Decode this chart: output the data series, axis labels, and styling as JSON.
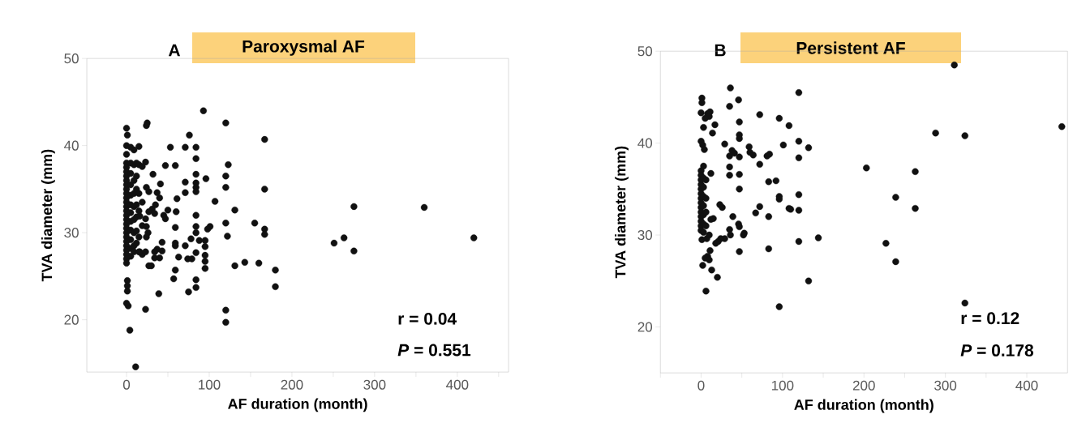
{
  "chart_data": [
    {
      "type": "scatter",
      "subtitle": "A",
      "title": "Paroxysmal AF",
      "xlabel": "AF duration (month)",
      "ylabel": "TVA diameter (mm)",
      "color": "#111111",
      "marker": "circle",
      "grid": false,
      "xlim": [
        -48,
        462
      ],
      "ylim": [
        14,
        50
      ],
      "xticks": [
        0,
        {
          "value": 50,
          "label": null
        },
        100,
        {
          "value": 150,
          "label": null
        },
        200,
        {
          "value": 250,
          "label": null
        },
        300,
        {
          "value": 350,
          "label": null
        },
        400,
        {
          "value": 450,
          "label": null
        }
      ],
      "yticks": [
        20,
        30,
        40,
        50
      ],
      "annotations": [
        "r = 0.04",
        "*P* = 0.551"
      ],
      "x": [
        0,
        0,
        0,
        0,
        0,
        0,
        0,
        0,
        0,
        0,
        0,
        0,
        0,
        0,
        0,
        0,
        0,
        0,
        0,
        0,
        0,
        0,
        0,
        0,
        0,
        0,
        5,
        5,
        5,
        5,
        5,
        5,
        5,
        5,
        5,
        5,
        5,
        5,
        9,
        9,
        9,
        9,
        9,
        9,
        9,
        9,
        9,
        12,
        12,
        12,
        12,
        12,
        12,
        12,
        15,
        15,
        15,
        15,
        15,
        19,
        19,
        19,
        19,
        93,
        120,
        167,
        25,
        24,
        0,
        1,
        76,
        15,
        53,
        71,
        84,
        84,
        47,
        59,
        23,
        123,
        120,
        84,
        96,
        32,
        71,
        84,
        84,
        84,
        120,
        167,
        41,
        71,
        24,
        27,
        37,
        61,
        107,
        131,
        40,
        35,
        31,
        50,
        60,
        45,
        47,
        34,
        27,
        16,
        23,
        84,
        120,
        155,
        59,
        84,
        84,
        101,
        98,
        167,
        167,
        122,
        24,
        26,
        24,
        78,
        88,
        95,
        95,
        43,
        59,
        59,
        71,
        37,
        43,
        34,
        16,
        23,
        84,
        63,
        74,
        79,
        95,
        95,
        95,
        34,
        40,
        131,
        143,
        160,
        180,
        180,
        27,
        30,
        59,
        57,
        84,
        84,
        75,
        39,
        23,
        120,
        120,
        1,
        1,
        1,
        0,
        2,
        4,
        11,
        275,
        360,
        251,
        263,
        275,
        420
      ],
      "values": [
        40,
        39,
        38,
        37.5,
        37,
        36.5,
        36,
        35.5,
        35,
        34.5,
        34,
        33.5,
        33,
        32.5,
        32,
        31.5,
        31,
        30.5,
        30,
        29.5,
        29,
        28.5,
        28,
        27.5,
        27,
        26.5,
        39.8,
        38,
        36.8,
        35.5,
        34.3,
        33.2,
        32.3,
        31.3,
        30.3,
        29.2,
        28.2,
        27.3,
        39.5,
        37.8,
        36,
        34.5,
        33,
        31.5,
        30,
        28.5,
        27.8,
        38,
        36.5,
        35,
        33.2,
        31.8,
        30.2,
        28.8,
        37.8,
        34.5,
        32.5,
        29.5,
        27.8,
        37.6,
        33.5,
        30.8,
        27.5,
        44.0,
        42.6,
        40.7,
        42.6,
        42.3,
        42.0,
        41.2,
        41.2,
        39.9,
        39.8,
        39.8,
        39.8,
        38.5,
        37.7,
        37.7,
        38.1,
        37.8,
        36.5,
        36.7,
        36.2,
        36.7,
        35.8,
        35.7,
        35.2,
        34.7,
        35.2,
        35.0,
        35.6,
        34.6,
        35.2,
        34.7,
        34.6,
        33.9,
        33.6,
        32.6,
        34.0,
        33.2,
        32.7,
        32.6,
        32.4,
        32.0,
        31.6,
        32.2,
        32.4,
        31.9,
        31.6,
        32.0,
        31.1,
        31.1,
        30.6,
        30.7,
        30.0,
        30.7,
        30.4,
        30.4,
        29.8,
        29.6,
        30.7,
        30.0,
        29.5,
        29.3,
        29.1,
        29.1,
        28.4,
        28.9,
        28.8,
        28.5,
        28.5,
        28.1,
        27.9,
        27.8,
        27.8,
        27.8,
        27.7,
        27.2,
        27.0,
        27.0,
        27.4,
        26.7,
        25.9,
        27.1,
        27.1,
        26.2,
        26.6,
        26.5,
        25.7,
        23.8,
        26.2,
        26.2,
        25.7,
        24.7,
        24.6,
        23.7,
        23.2,
        23.0,
        21.2,
        21.1,
        19.7,
        24.5,
        23.9,
        23.3,
        21.9,
        21.6,
        18.8,
        14.6,
        33.0,
        32.9,
        28.8,
        29.4,
        27.9,
        29.4
      ]
    },
    {
      "type": "scatter",
      "subtitle": "B",
      "title": "Persistent AF",
      "xlabel": "AF duration (month)",
      "ylabel": "TVA diameter (mm)",
      "color": "#111111",
      "marker": "circle",
      "grid": false,
      "xlim": [
        -50,
        450
      ],
      "ylim": [
        15,
        50
      ],
      "xticks": [
        {
          "value": -50,
          "label": null
        },
        0,
        {
          "value": 50,
          "label": null
        },
        100,
        {
          "value": 150,
          "label": null
        },
        200,
        {
          "value": 250,
          "label": null
        },
        300,
        {
          "value": 350,
          "label": null
        },
        400
      ],
      "yticks": [
        20,
        30,
        40,
        50
      ],
      "annotations": [
        "r = 0.12",
        "*P* = 0.178"
      ],
      "x": [
        0,
        0,
        0,
        0,
        0,
        0,
        0,
        0,
        0,
        0,
        0,
        0,
        0,
        0,
        3,
        3,
        3,
        3,
        3,
        3,
        3,
        3,
        6,
        6,
        6,
        6,
        36,
        120,
        46,
        1,
        1,
        35,
        0,
        8,
        11,
        10,
        5,
        72,
        96,
        47,
        17,
        14,
        3,
        108,
        47,
        47,
        0,
        2,
        4,
        29,
        101,
        120,
        132,
        38,
        41,
        35,
        47,
        59,
        60,
        64,
        81,
        84,
        120,
        72,
        35,
        35,
        47,
        12,
        83,
        92,
        47,
        96,
        96,
        120,
        23,
        26,
        72,
        67,
        83,
        108,
        110,
        120,
        15,
        12,
        39,
        46,
        47,
        53,
        52,
        35,
        36,
        29,
        24,
        21,
        18,
        1,
        7,
        10,
        120,
        144,
        83,
        47,
        11,
        8,
        5,
        2,
        10,
        13,
        20,
        132,
        6,
        96,
        311,
        443,
        288,
        324,
        203,
        263,
        239,
        263,
        227,
        239,
        324
      ],
      "values": [
        37,
        36.5,
        36,
        35.5,
        35,
        34.5,
        34,
        33.5,
        33,
        32.5,
        32,
        31.5,
        31,
        30.5,
        37.5,
        36.2,
        35.2,
        34.2,
        33.2,
        32.2,
        31.2,
        30.3,
        36,
        34,
        32.5,
        31,
        46.0,
        45.5,
        44.7,
        44.9,
        44.4,
        44.0,
        43.3,
        43.2,
        43.4,
        42.9,
        42.7,
        43.1,
        42.7,
        42.3,
        42.0,
        41.1,
        41.7,
        41.9,
        40.9,
        40.5,
        40.2,
        39.8,
        39.3,
        39.9,
        39.8,
        40.2,
        39.5,
        39.2,
        38.9,
        38.6,
        38.5,
        39.6,
        39.0,
        38.7,
        38.6,
        38.8,
        38.4,
        37.7,
        37.4,
        36.5,
        36.6,
        36.7,
        35.8,
        35.9,
        35.0,
        34.2,
        33.9,
        34.4,
        33.3,
        33.0,
        33.1,
        32.4,
        32.0,
        32.9,
        32.8,
        32.7,
        31.8,
        31.7,
        32.0,
        31.2,
        30.9,
        30.2,
        30.0,
        30.6,
        30.0,
        29.6,
        29.6,
        29.3,
        29.1,
        29.5,
        29.6,
        30.0,
        29.3,
        29.7,
        28.5,
        28.2,
        28.3,
        27.7,
        27.5,
        26.7,
        27.3,
        26.2,
        25.4,
        25.0,
        23.9,
        22.2,
        48.5,
        41.8,
        41.1,
        40.8,
        37.3,
        36.9,
        34.1,
        32.9,
        29.1,
        27.1,
        22.6
      ]
    }
  ]
}
